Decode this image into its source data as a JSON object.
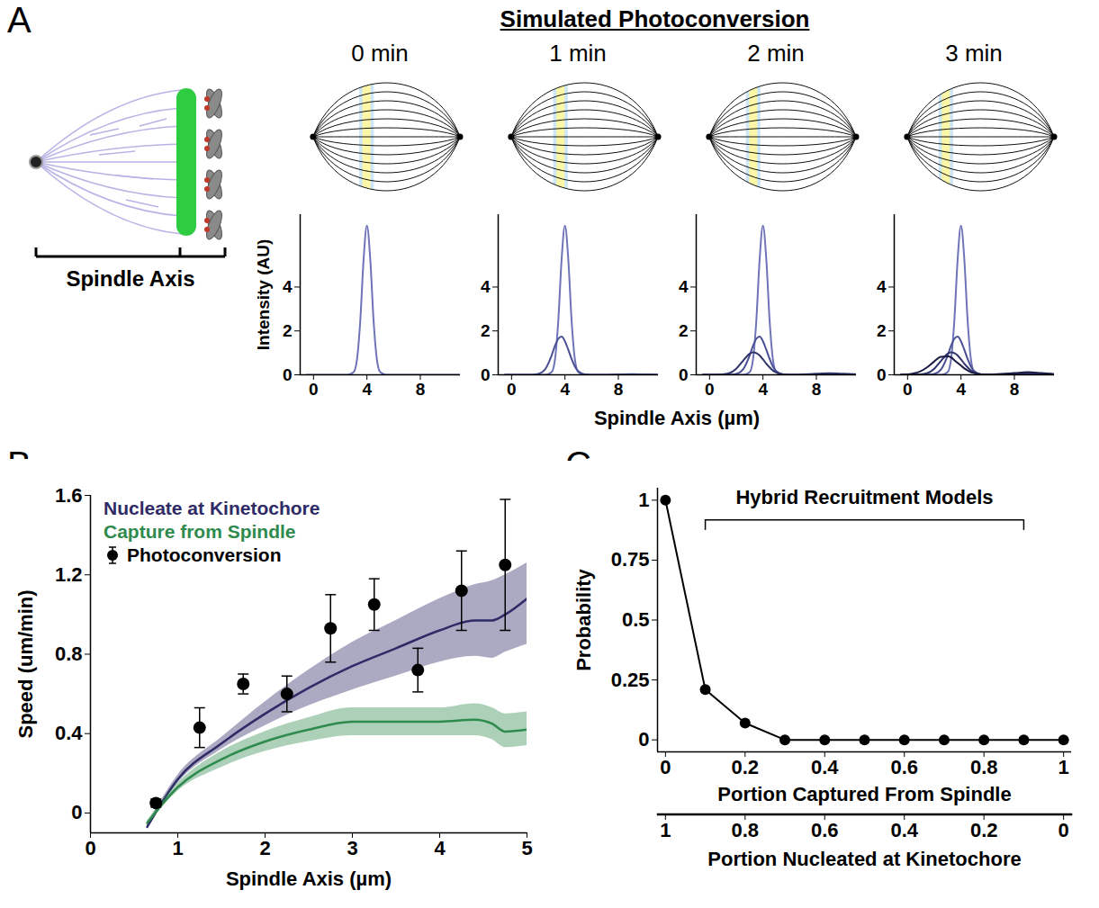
{
  "chart_data": [
    {
      "panel": "A",
      "type": "line",
      "title": "Simulated Photoconversion",
      "schematic_label": "Spindle Axis",
      "xlabel": "Spindle Axis (µm)",
      "ylabel": "Intensity (AU)",
      "xlim": [
        -1,
        11
      ],
      "ylim": [
        0,
        7.3
      ],
      "xticks": [
        0,
        4,
        8
      ],
      "yticks": [
        0,
        2,
        4
      ],
      "x": [
        -0.5,
        0,
        0.5,
        1,
        1.5,
        2,
        2.5,
        3,
        3.25,
        3.5,
        3.75,
        4,
        4.25,
        4.5,
        4.75,
        5,
        5.5,
        6,
        7,
        8,
        9,
        10,
        11
      ],
      "subplots": [
        {
          "title": "0 min",
          "band_x": 4,
          "series": [
            {
              "color": "#6f74b8",
              "values": [
                0,
                0,
                0,
                0,
                0,
                0,
                0,
                0.12,
                0.68,
                2.45,
                5.26,
                6.8,
                5.26,
                2.45,
                0.68,
                0.12,
                0,
                0,
                0,
                0,
                0,
                0,
                0
              ]
            }
          ]
        },
        {
          "title": "1 min",
          "band_x": 3.7,
          "series": [
            {
              "color": "#6f74b8",
              "values": [
                0,
                0,
                0,
                0,
                0,
                0,
                0,
                0.12,
                0.68,
                2.45,
                5.26,
                6.8,
                5.26,
                2.45,
                0.68,
                0.12,
                0,
                0,
                0,
                0,
                0,
                0,
                0
              ]
            },
            {
              "color": "#4a4f93",
              "values": [
                0,
                0,
                0,
                0,
                0,
                0.04,
                0.24,
                0.88,
                1.32,
                1.64,
                1.74,
                1.53,
                1.14,
                0.72,
                0.37,
                0.16,
                0.02,
                0,
                0,
                0.02,
                0.03,
                0.02,
                0
              ]
            }
          ]
        },
        {
          "title": "2 min",
          "band_x": 3.3,
          "series": [
            {
              "color": "#6f74b8",
              "values": [
                0,
                0,
                0,
                0,
                0,
                0,
                0,
                0.12,
                0.68,
                2.45,
                5.26,
                6.8,
                5.26,
                2.45,
                0.68,
                0.12,
                0,
                0,
                0,
                0,
                0,
                0,
                0
              ]
            },
            {
              "color": "#4a4f93",
              "values": [
                0,
                0,
                0,
                0,
                0,
                0.04,
                0.24,
                0.88,
                1.32,
                1.64,
                1.74,
                1.53,
                1.14,
                0.72,
                0.37,
                0.16,
                0.02,
                0,
                0,
                0.02,
                0.03,
                0.02,
                0
              ]
            },
            {
              "color": "#2f336b",
              "values": [
                0,
                0,
                0,
                0.02,
                0.08,
                0.28,
                0.63,
                0.96,
                1.03,
                0.99,
                0.88,
                0.7,
                0.51,
                0.34,
                0.19,
                0.11,
                0.02,
                0,
                0.02,
                0.05,
                0.07,
                0.05,
                0.02
              ]
            }
          ]
        },
        {
          "title": "3 min",
          "band_x": 2.9,
          "series": [
            {
              "color": "#6f74b8",
              "values": [
                0,
                0,
                0,
                0,
                0,
                0,
                0,
                0.12,
                0.68,
                2.45,
                5.26,
                6.8,
                5.26,
                2.45,
                0.68,
                0.12,
                0,
                0,
                0,
                0,
                0,
                0,
                0
              ]
            },
            {
              "color": "#4a4f93",
              "values": [
                0,
                0,
                0,
                0,
                0,
                0.04,
                0.24,
                0.88,
                1.32,
                1.64,
                1.74,
                1.53,
                1.14,
                0.72,
                0.37,
                0.16,
                0.02,
                0,
                0,
                0.02,
                0.03,
                0.02,
                0
              ]
            },
            {
              "color": "#2f336b",
              "values": [
                0,
                0,
                0,
                0.02,
                0.08,
                0.28,
                0.63,
                0.96,
                1.03,
                0.99,
                0.88,
                0.7,
                0.51,
                0.34,
                0.19,
                0.11,
                0.02,
                0,
                0.02,
                0.05,
                0.07,
                0.05,
                0.02
              ]
            },
            {
              "color": "#1a1c45",
              "values": [
                0,
                0.02,
                0.07,
                0.17,
                0.36,
                0.61,
                0.82,
                0.84,
                0.8,
                0.67,
                0.54,
                0.42,
                0.29,
                0.2,
                0.12,
                0.08,
                0.02,
                0.01,
                0.04,
                0.08,
                0.12,
                0.08,
                0.03
              ]
            }
          ]
        }
      ]
    },
    {
      "panel": "B",
      "type": "line",
      "xlabel": "Spindle Axis (µm)",
      "ylabel": "Speed (um/min)",
      "xlim": [
        0,
        5
      ],
      "ylim": [
        -0.1,
        1.6
      ],
      "xticks": [
        0,
        1,
        2,
        3,
        4,
        5
      ],
      "yticks": [
        0,
        0.4,
        0.8,
        1.2,
        1.6
      ],
      "legend": "top-left",
      "series": [
        {
          "name": "Nucleate at Kinetochore",
          "type": "line",
          "color": "#2e2b66",
          "x": [
            0.65,
            1,
            1.5,
            2,
            2.5,
            3,
            3.5,
            4,
            4.4,
            4.6,
            4.75,
            5
          ],
          "values": [
            -0.07,
            0.17,
            0.35,
            0.5,
            0.63,
            0.74,
            0.83,
            0.92,
            0.97,
            0.97,
            1.0,
            1.08
          ],
          "lower": [
            -0.08,
            0.15,
            0.32,
            0.44,
            0.54,
            0.62,
            0.69,
            0.76,
            0.79,
            0.78,
            0.81,
            0.85
          ],
          "upper": [
            -0.06,
            0.19,
            0.38,
            0.56,
            0.72,
            0.86,
            0.97,
            1.08,
            1.15,
            1.17,
            1.2,
            1.26
          ]
        },
        {
          "name": "Capture from Spindle",
          "type": "line",
          "color": "#2f8a4e",
          "x": [
            0.65,
            1,
            1.5,
            2,
            2.5,
            3,
            3.5,
            4,
            4.4,
            4.6,
            4.75,
            5
          ],
          "values": [
            -0.05,
            0.13,
            0.27,
            0.36,
            0.42,
            0.46,
            0.46,
            0.46,
            0.47,
            0.45,
            0.41,
            0.42
          ],
          "lower": [
            -0.06,
            0.11,
            0.23,
            0.31,
            0.36,
            0.39,
            0.39,
            0.39,
            0.39,
            0.37,
            0.33,
            0.34
          ],
          "upper": [
            -0.04,
            0.15,
            0.31,
            0.41,
            0.48,
            0.53,
            0.53,
            0.53,
            0.55,
            0.53,
            0.5,
            0.51
          ]
        },
        {
          "name": "Photoconversion",
          "type": "scatter",
          "marker": "circle",
          "color": "#000000",
          "x": [
            0.75,
            1.25,
            1.75,
            2.25,
            2.75,
            3.25,
            3.75,
            4.25,
            4.75
          ],
          "values": [
            0.05,
            0.43,
            0.65,
            0.6,
            0.93,
            1.05,
            0.72,
            1.12,
            1.25
          ],
          "error": [
            0.02,
            0.1,
            0.05,
            0.09,
            0.17,
            0.13,
            0.11,
            0.2,
            0.33
          ]
        }
      ]
    },
    {
      "panel": "C",
      "type": "line",
      "marker": "circle",
      "color": "#000000",
      "annotation": "Hybrid Recruitment Models",
      "annotation_range": [
        0.1,
        0.9
      ],
      "xlabel": "Portion Captured From Spindle",
      "x2label": "Portion Nucleated at Kinetochore",
      "ylabel": "Probability",
      "xlim": [
        -0.02,
        1.02
      ],
      "xticks": [
        0,
        0.2,
        0.4,
        0.6,
        0.8,
        1
      ],
      "x2lim": [
        1.02,
        -0.02
      ],
      "x2ticks": [
        1,
        0.8,
        0.6,
        0.4,
        0.2,
        0
      ],
      "ylim": [
        -0.05,
        1.05
      ],
      "yticks": [
        0,
        0.25,
        0.5,
        0.75,
        1
      ],
      "x": [
        0,
        0.1,
        0.2,
        0.3,
        0.4,
        0.5,
        0.6,
        0.7,
        0.8,
        0.9,
        1
      ],
      "values": [
        1,
        0.21,
        0.07,
        0,
        0,
        0,
        0,
        0,
        0,
        0,
        0
      ]
    }
  ]
}
